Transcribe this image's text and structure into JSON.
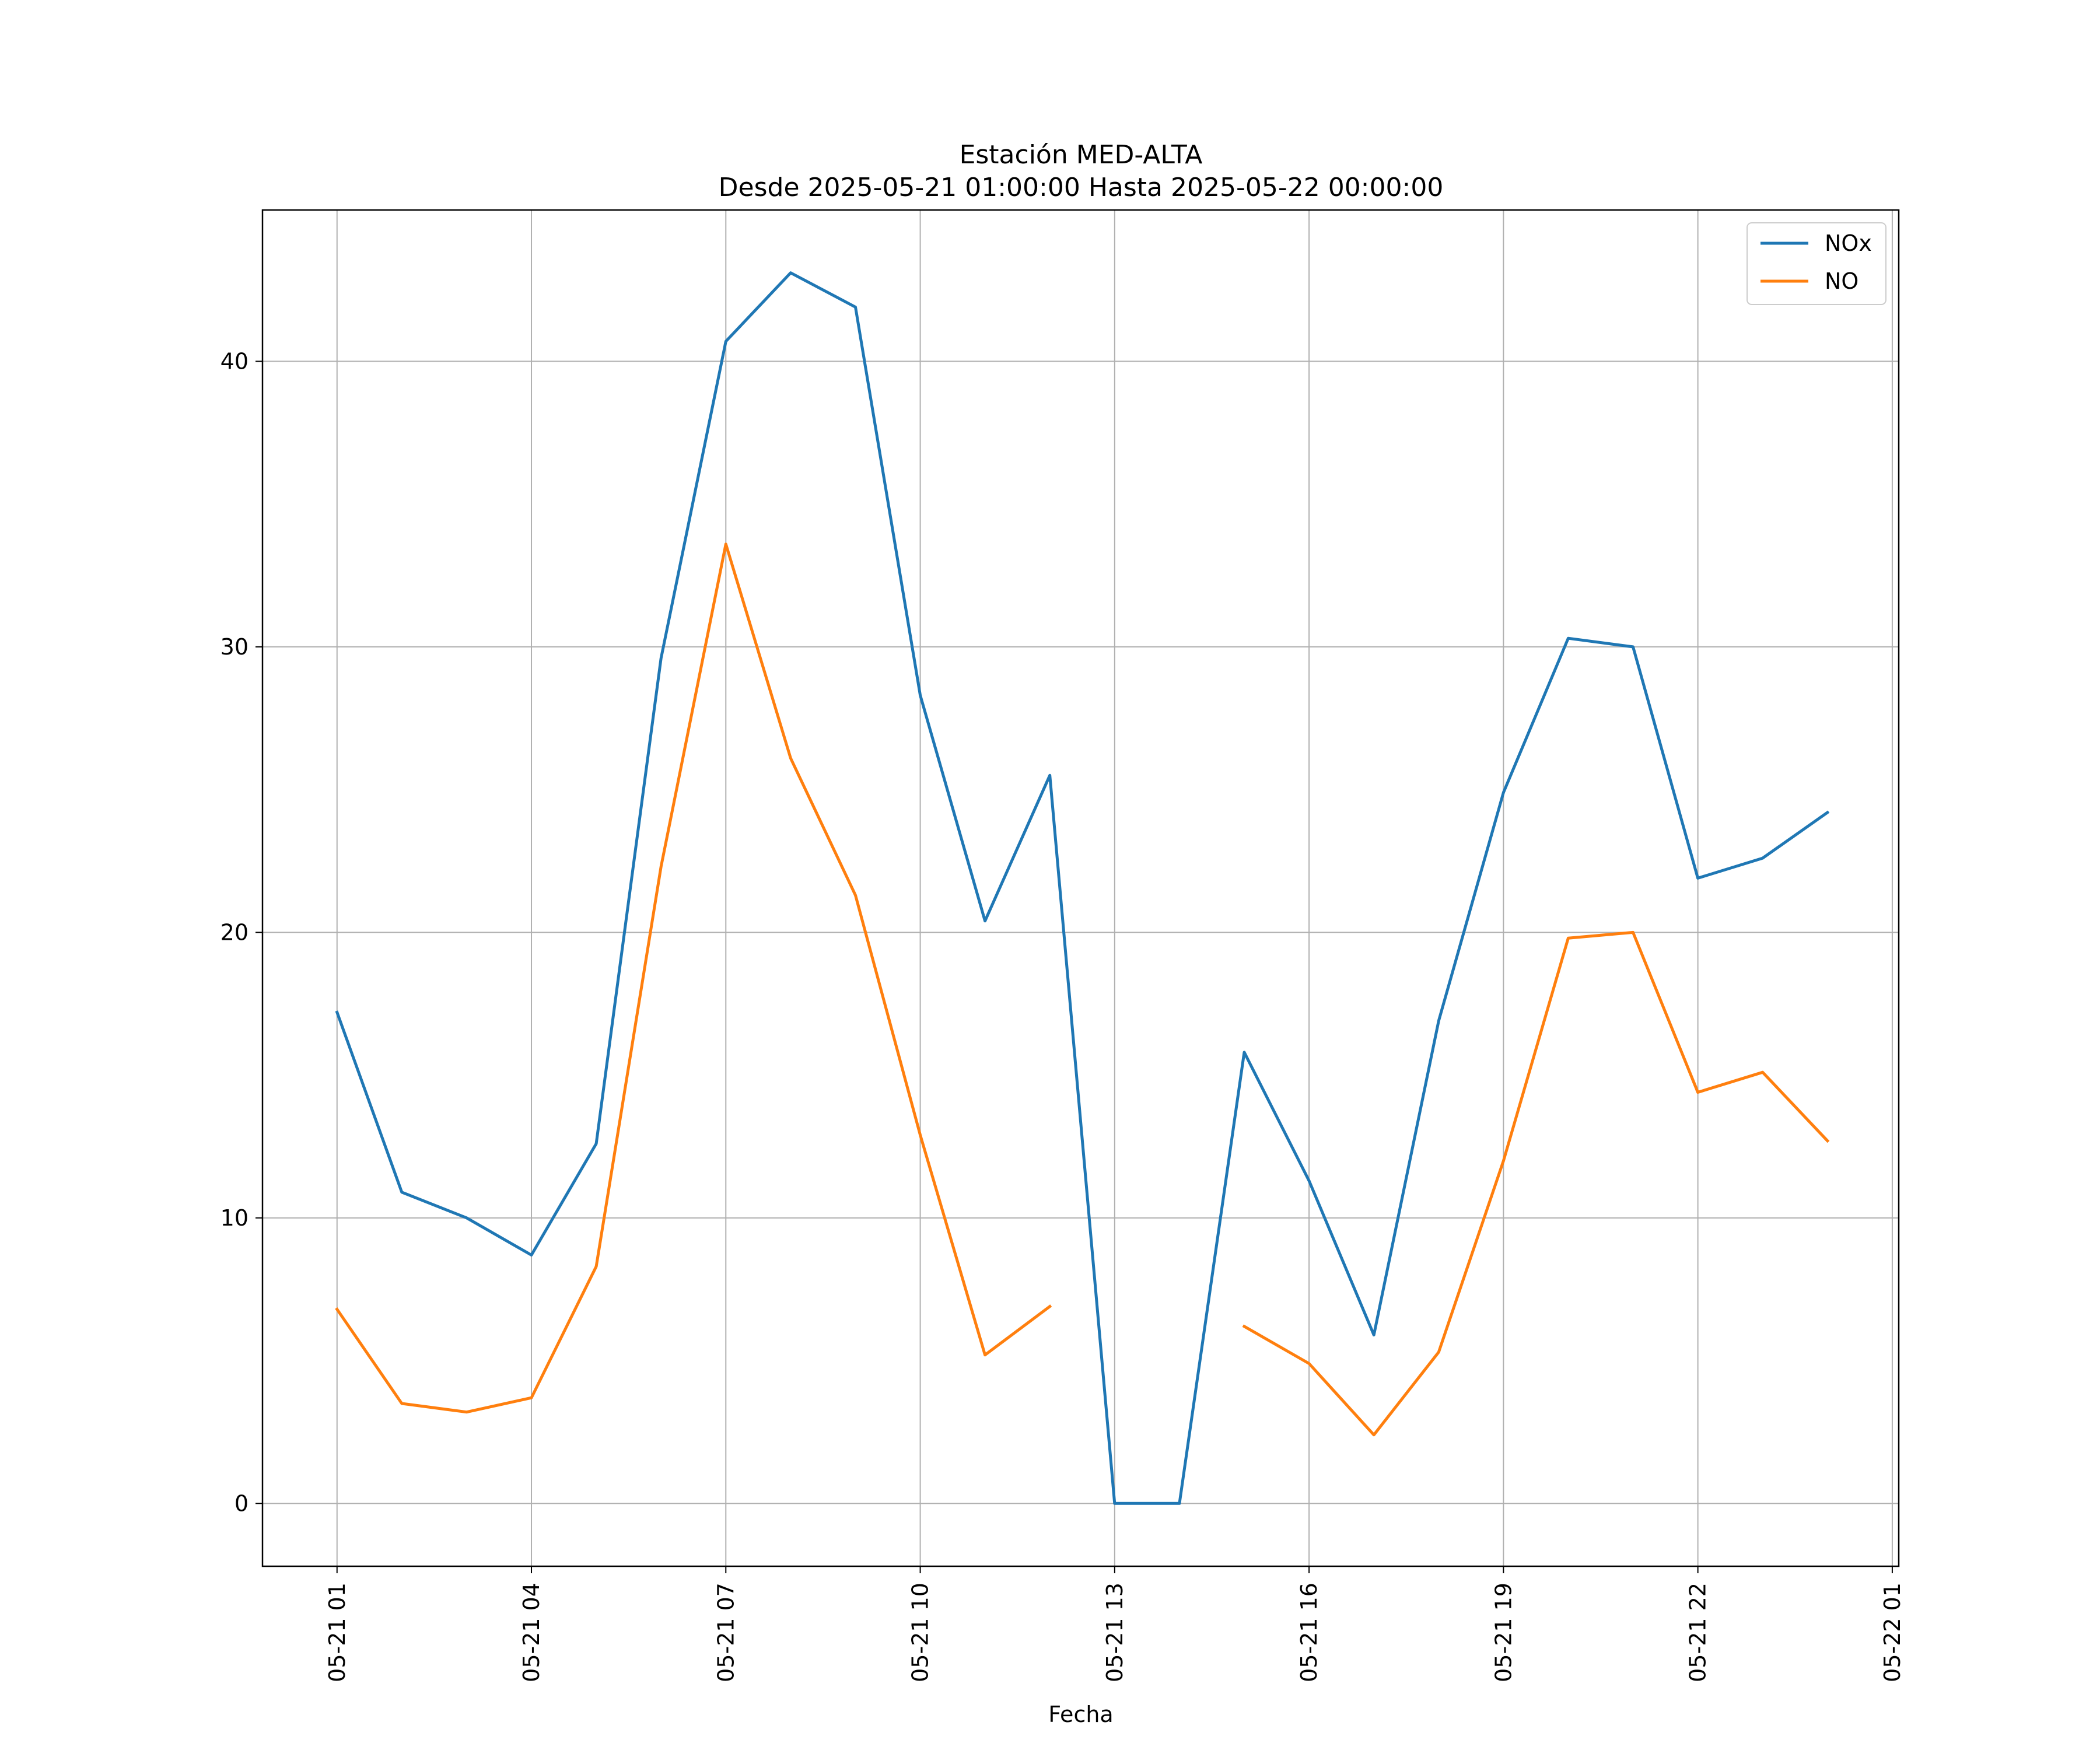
{
  "chart_data": {
    "type": "line",
    "title": "Estación MED-ALTA",
    "subtitle": "Desde 2025-05-21 01:00:00 Hasta 2025-05-22 00:00:00",
    "xlabel": "Fecha",
    "ylabel": "",
    "x": [
      "2025-05-21 01:00",
      "2025-05-21 02:00",
      "2025-05-21 03:00",
      "2025-05-21 04:00",
      "2025-05-21 05:00",
      "2025-05-21 06:00",
      "2025-05-21 07:00",
      "2025-05-21 08:00",
      "2025-05-21 09:00",
      "2025-05-21 10:00",
      "2025-05-21 11:00",
      "2025-05-21 12:00",
      "2025-05-21 13:00",
      "2025-05-21 14:00",
      "2025-05-21 15:00",
      "2025-05-21 16:00",
      "2025-05-21 17:00",
      "2025-05-21 18:00",
      "2025-05-21 19:00",
      "2025-05-21 20:00",
      "2025-05-21 21:00",
      "2025-05-21 22:00",
      "2025-05-21 23:00",
      "2025-05-22 00:00"
    ],
    "x_ticks": [
      "05-21 01",
      "05-21 04",
      "05-21 07",
      "05-21 10",
      "05-21 13",
      "05-21 16",
      "05-21 19",
      "05-21 22",
      "05-22 01"
    ],
    "xlim": [
      "2025-05-20 23:51",
      "2025-05-22 01:06"
    ],
    "y_ticks": [
      0,
      10,
      20,
      30,
      40
    ],
    "ylim": [
      -2.2,
      45.3
    ],
    "grid": true,
    "legend_position": "top-right",
    "series": [
      {
        "name": "NOx",
        "color": "#1f77b4",
        "values": [
          17.2,
          10.9,
          10.0,
          8.7,
          12.6,
          29.6,
          40.7,
          43.1,
          41.9,
          28.3,
          20.4,
          25.5,
          0.0,
          0.0,
          15.8,
          11.3,
          5.9,
          16.9,
          24.9,
          30.3,
          30.0,
          21.9,
          22.6,
          24.2
        ]
      },
      {
        "name": "NO",
        "color": "#ff7f0e",
        "values": [
          6.8,
          3.5,
          3.2,
          3.7,
          8.3,
          22.3,
          33.6,
          26.1,
          21.3,
          12.9,
          5.2,
          6.9,
          null,
          null,
          6.2,
          4.9,
          2.4,
          5.3,
          12.0,
          19.8,
          20.0,
          14.4,
          15.1,
          12.7
        ]
      }
    ]
  }
}
